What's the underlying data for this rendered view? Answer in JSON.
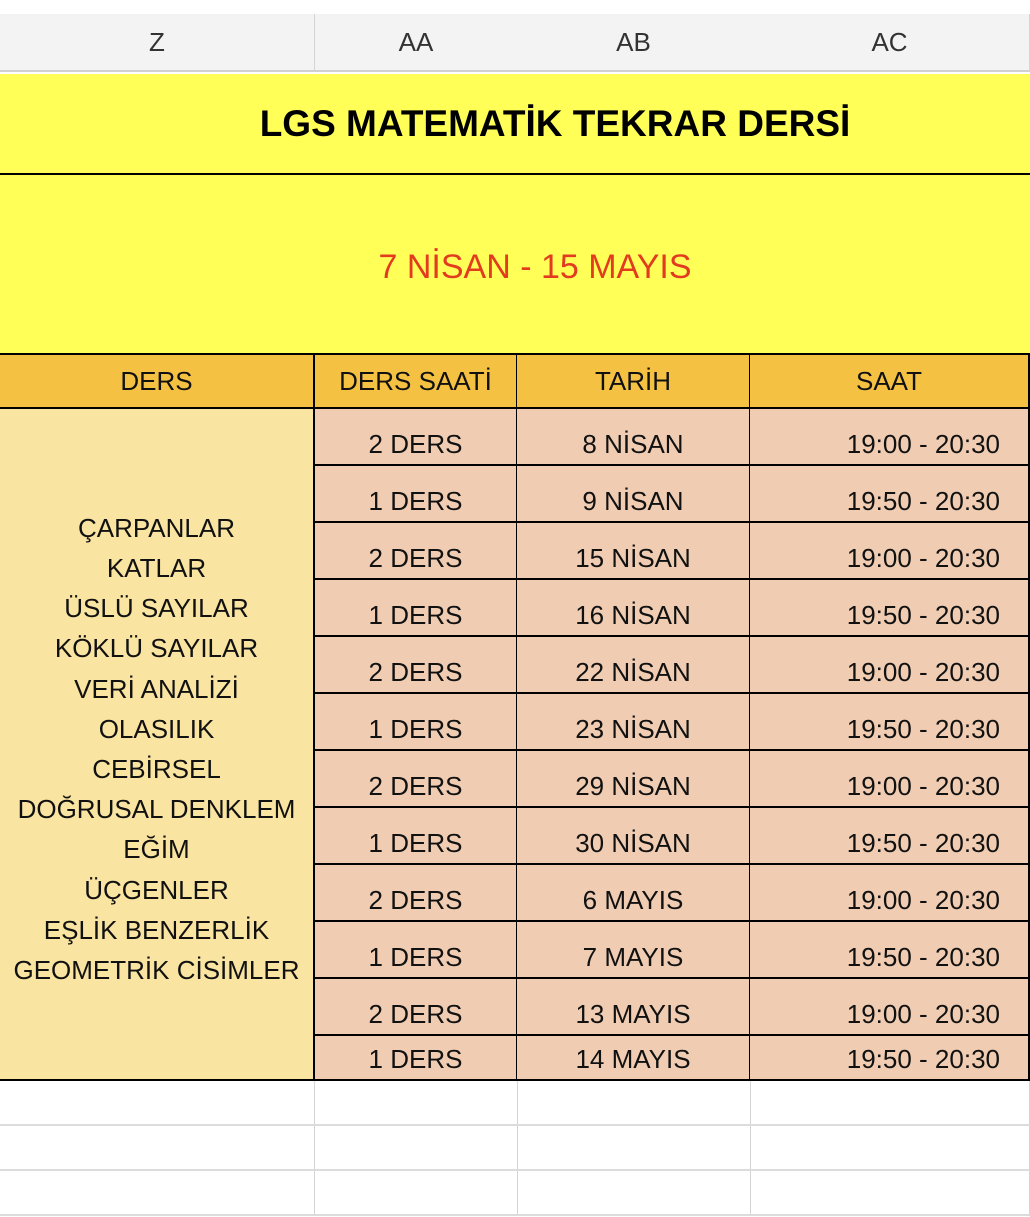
{
  "columns": [
    "Z",
    "AA",
    "AB",
    "AC"
  ],
  "title": "LGS MATEMATİK TEKRAR DERSİ",
  "date_range": "7 NİSAN - 15 MAYIS",
  "colors": {
    "title_bg": "#ffff57",
    "date_text": "#e23b1f",
    "header_bg": "#f5c142",
    "topics_bg": "#f9e4a1",
    "cell_bg": "#f0cdb2"
  },
  "headers": [
    "DERS",
    "DERS SAATİ",
    "TARİH",
    "SAAT"
  ],
  "topics": [
    "ÇARPANLAR",
    "KATLAR",
    "ÜSLÜ SAYILAR",
    "KÖKLÜ SAYILAR",
    "VERİ ANALİZİ",
    "OLASILIK",
    "CEBİRSEL",
    "DOĞRUSAL DENKLEM",
    "EĞİM",
    "ÜÇGENLER",
    "EŞLİK BENZERLİK",
    "GEOMETRİK CİSİMLER"
  ],
  "rows": [
    {
      "hours": "2 DERS",
      "date": "8 NİSAN",
      "time": "19:00 - 20:30"
    },
    {
      "hours": "1 DERS",
      "date": "9 NİSAN",
      "time": "19:50 - 20:30"
    },
    {
      "hours": "2 DERS",
      "date": "15 NİSAN",
      "time": "19:00 - 20:30"
    },
    {
      "hours": "1 DERS",
      "date": "16 NİSAN",
      "time": "19:50 - 20:30"
    },
    {
      "hours": "2 DERS",
      "date": "22 NİSAN",
      "time": "19:00 - 20:30"
    },
    {
      "hours": "1 DERS",
      "date": "23 NİSAN",
      "time": "19:50 - 20:30"
    },
    {
      "hours": "2 DERS",
      "date": "29 NİSAN",
      "time": "19:00 - 20:30"
    },
    {
      "hours": "1 DERS",
      "date": "30 NİSAN",
      "time": "19:50 - 20:30"
    },
    {
      "hours": "2 DERS",
      "date": "6 MAYIS",
      "time": "19:00 - 20:30"
    },
    {
      "hours": "1 DERS",
      "date": "7 MAYIS",
      "time": "19:50 - 20:30"
    },
    {
      "hours": "2 DERS",
      "date": "13 MAYIS",
      "time": "19:00 - 20:30"
    },
    {
      "hours": "1 DERS",
      "date": "14 MAYIS",
      "time": "19:50 - 20:30"
    }
  ]
}
